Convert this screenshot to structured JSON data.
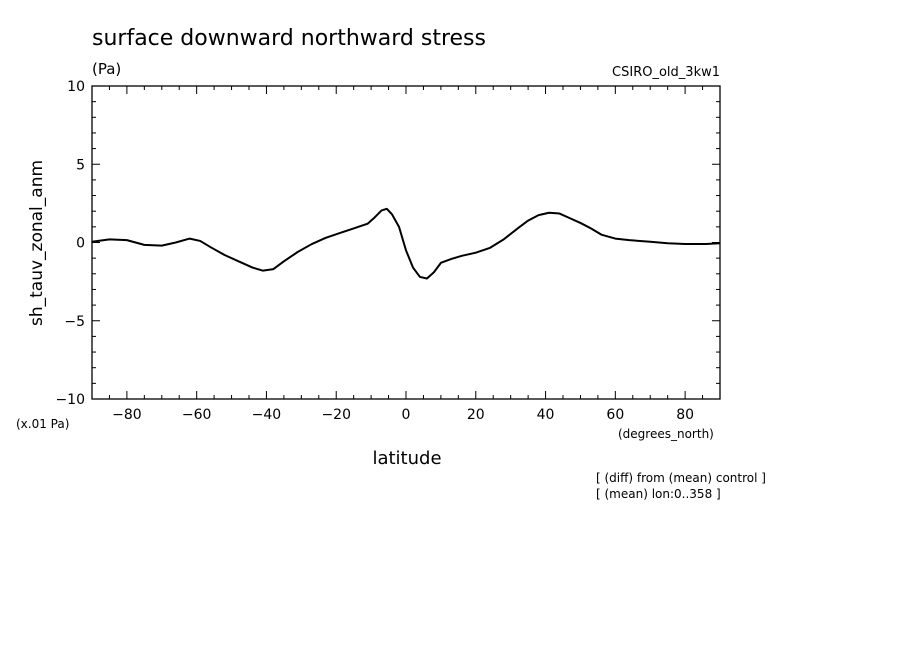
{
  "title": "surface downward northward stress",
  "units": "(Pa)",
  "model": "CSIRO_old_3kw1",
  "ylabel": "sh_tauv_zonal_anm",
  "yunits": "(x.01 Pa)",
  "xlabel": "latitude",
  "xunits": "(degrees_north)",
  "notes": [
    "[ (diff) from (mean) control ]",
    "[ (mean) lon:0..358 ]"
  ],
  "chart_data": {
    "type": "line",
    "xlim": [
      -90,
      90
    ],
    "ylim": [
      -10,
      10
    ],
    "xticks": [
      -80,
      -60,
      -40,
      -20,
      0,
      20,
      40,
      60,
      80
    ],
    "xtick_labels": [
      "−80",
      "−60",
      "−40",
      "−20",
      "0",
      "20",
      "40",
      "60",
      "80"
    ],
    "yticks": [
      10,
      5,
      0,
      -5,
      -10
    ],
    "ytick_labels": [
      "10",
      "5",
      "0",
      "−5",
      "−10"
    ],
    "grid": false,
    "x": [
      -90,
      -85,
      -80,
      -75,
      -70,
      -66,
      -62,
      -59,
      -56,
      -52,
      -48,
      -44,
      -41,
      -38,
      -35,
      -31,
      -27,
      -23,
      -19,
      -15,
      -11,
      -9,
      -7,
      -5.5,
      -4,
      -2,
      0,
      2,
      4,
      6,
      8,
      10,
      13,
      16,
      20,
      24,
      28,
      32,
      35,
      38,
      41,
      44,
      47,
      50,
      53,
      56,
      60,
      64,
      70,
      75,
      80,
      86,
      90
    ],
    "y": [
      0.05,
      0.2,
      0.15,
      -0.15,
      -0.2,
      0.0,
      0.25,
      0.1,
      -0.3,
      -0.8,
      -1.2,
      -1.6,
      -1.8,
      -1.7,
      -1.2,
      -0.6,
      -0.1,
      0.3,
      0.6,
      0.9,
      1.2,
      1.6,
      2.05,
      2.15,
      1.8,
      1.0,
      -0.5,
      -1.6,
      -2.2,
      -2.3,
      -1.9,
      -1.3,
      -1.05,
      -0.85,
      -0.65,
      -0.35,
      0.2,
      0.9,
      1.4,
      1.75,
      1.9,
      1.85,
      1.55,
      1.25,
      0.9,
      0.5,
      0.25,
      0.15,
      0.05,
      -0.05,
      -0.1,
      -0.1,
      -0.05
    ]
  }
}
